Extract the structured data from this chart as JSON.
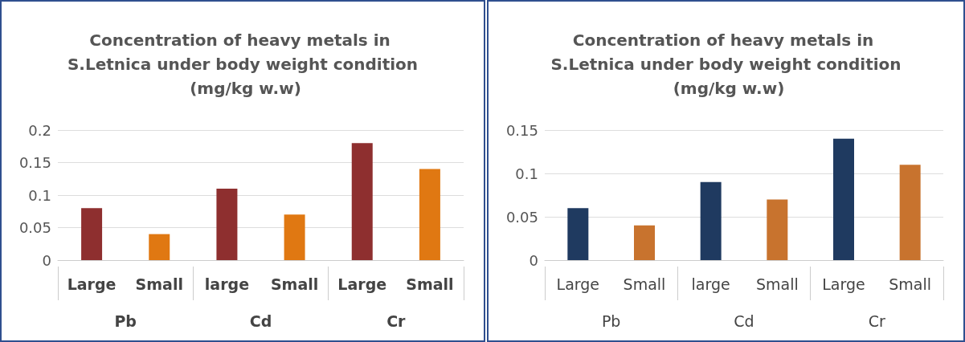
{
  "chart_data": [
    {
      "type": "bar",
      "title": "Concentration of heavy metals in S.Letnica under body weight condition (mg/kg w.w)",
      "categories": [
        "Large",
        "Small",
        "large",
        "Small",
        "Large",
        "Small"
      ],
      "values": [
        0.08,
        0.04,
        0.11,
        0.07,
        0.18,
        0.14
      ],
      "colors": [
        "#8e2f2f",
        "#e07812",
        "#8e2f2f",
        "#e07812",
        "#8e2f2f",
        "#e07812"
      ],
      "ylim": [
        0,
        0.2
      ],
      "yticks": [
        0,
        0.05,
        0.1,
        0.15,
        0.2
      ],
      "grid": "y",
      "annotations": [
        "Pb",
        "Cd",
        "Cr"
      ]
    },
    {
      "type": "bar",
      "title": "Concentration of heavy metals in S.Letnica under body weight condition (mg/kg w.w)",
      "categories": [
        "Large",
        "Small",
        "large",
        "Small",
        "Large",
        "Small"
      ],
      "values": [
        0.06,
        0.04,
        0.09,
        0.07,
        0.14,
        0.11
      ],
      "colors": [
        "#1f3a60",
        "#c8732e",
        "#1f3a60",
        "#c8732e",
        "#1f3a60",
        "#c8732e"
      ],
      "ylim": [
        0,
        0.15
      ],
      "yticks": [
        0,
        0.05,
        0.1,
        0.15
      ],
      "grid": "y",
      "annotations": [
        "Pb",
        "Cd",
        "Cr"
      ]
    }
  ]
}
